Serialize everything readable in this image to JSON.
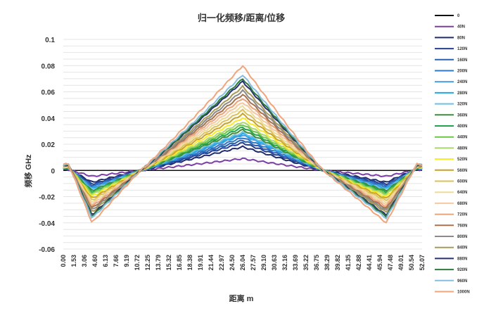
{
  "chart_data": {
    "type": "line",
    "title": "归一化频移/距离/位移",
    "xlabel": "距离 m",
    "ylabel": "频移 GHz",
    "ylim": [
      -0.06,
      0.1
    ],
    "yticks": [
      "0.1",
      "0.08",
      "0.06",
      "0.04",
      "0.02",
      "0",
      "-0.02",
      "-0.04",
      "-0.06"
    ],
    "xticks": [
      "0.00",
      "1.53",
      "3.06",
      "4.60",
      "6.13",
      "7.66",
      "9.19",
      "10.72",
      "12.25",
      "13.79",
      "15.32",
      "16.85",
      "18.38",
      "19.91",
      "21.44",
      "22.97",
      "24.50",
      "26.04",
      "27.57",
      "29.10",
      "30.63",
      "32.16",
      "33.69",
      "35.22",
      "36.75",
      "38.29",
      "39.82",
      "41.35",
      "42.88",
      "44.41",
      "45.94",
      "47.48",
      "49.01",
      "50.54",
      "52.07"
    ],
    "legend_position": "right",
    "grid": true,
    "series": [
      {
        "name": "0",
        "color": "#111111",
        "peak": 0.0
      },
      {
        "name": "40N",
        "color": "#7b3fa5",
        "peak": 0.009
      },
      {
        "name": "80N",
        "color": "#1f2c6e",
        "peak": 0.018
      },
      {
        "name": "120N",
        "color": "#24408f",
        "peak": 0.021
      },
      {
        "name": "160N",
        "color": "#2b5fb0",
        "peak": 0.023
      },
      {
        "name": "200N",
        "color": "#2f78c8",
        "peak": 0.025
      },
      {
        "name": "240N",
        "color": "#4a9ad8",
        "peak": 0.027
      },
      {
        "name": "280N",
        "color": "#1fa9e6",
        "peak": 0.028
      },
      {
        "name": "320N",
        "color": "#6cc0e6",
        "peak": 0.029
      },
      {
        "name": "360N",
        "color": "#3f8c3a",
        "peak": 0.031
      },
      {
        "name": "400N",
        "color": "#21a64d",
        "peak": 0.033
      },
      {
        "name": "440N",
        "color": "#6ec34a",
        "peak": 0.035
      },
      {
        "name": "480N",
        "color": "#a9d66e",
        "peak": 0.037
      },
      {
        "name": "520N",
        "color": "#f6ec2a",
        "peak": 0.04
      },
      {
        "name": "560N",
        "color": "#c9a227",
        "peak": 0.043
      },
      {
        "name": "600N",
        "color": "#dcc15a",
        "peak": 0.046
      },
      {
        "name": "640N",
        "color": "#eedb9a",
        "peak": 0.049
      },
      {
        "name": "680N",
        "color": "#f3c9a2",
        "peak": 0.052
      },
      {
        "name": "720N",
        "color": "#e6a47a",
        "peak": 0.055
      },
      {
        "name": "760N",
        "color": "#a8724e",
        "peak": 0.058
      },
      {
        "name": "800N",
        "color": "#8a8a8a",
        "peak": 0.061
      },
      {
        "name": "840N",
        "color": "#a89a5a",
        "peak": 0.064
      },
      {
        "name": "880N",
        "color": "#2a2f75",
        "peak": 0.068
      },
      {
        "name": "920N",
        "color": "#2f7a3a",
        "peak": 0.07
      },
      {
        "name": "960N",
        "color": "#86bde0",
        "peak": 0.073
      },
      {
        "name": "1000N",
        "color": "#f0a57c",
        "peak": 0.08
      }
    ]
  }
}
